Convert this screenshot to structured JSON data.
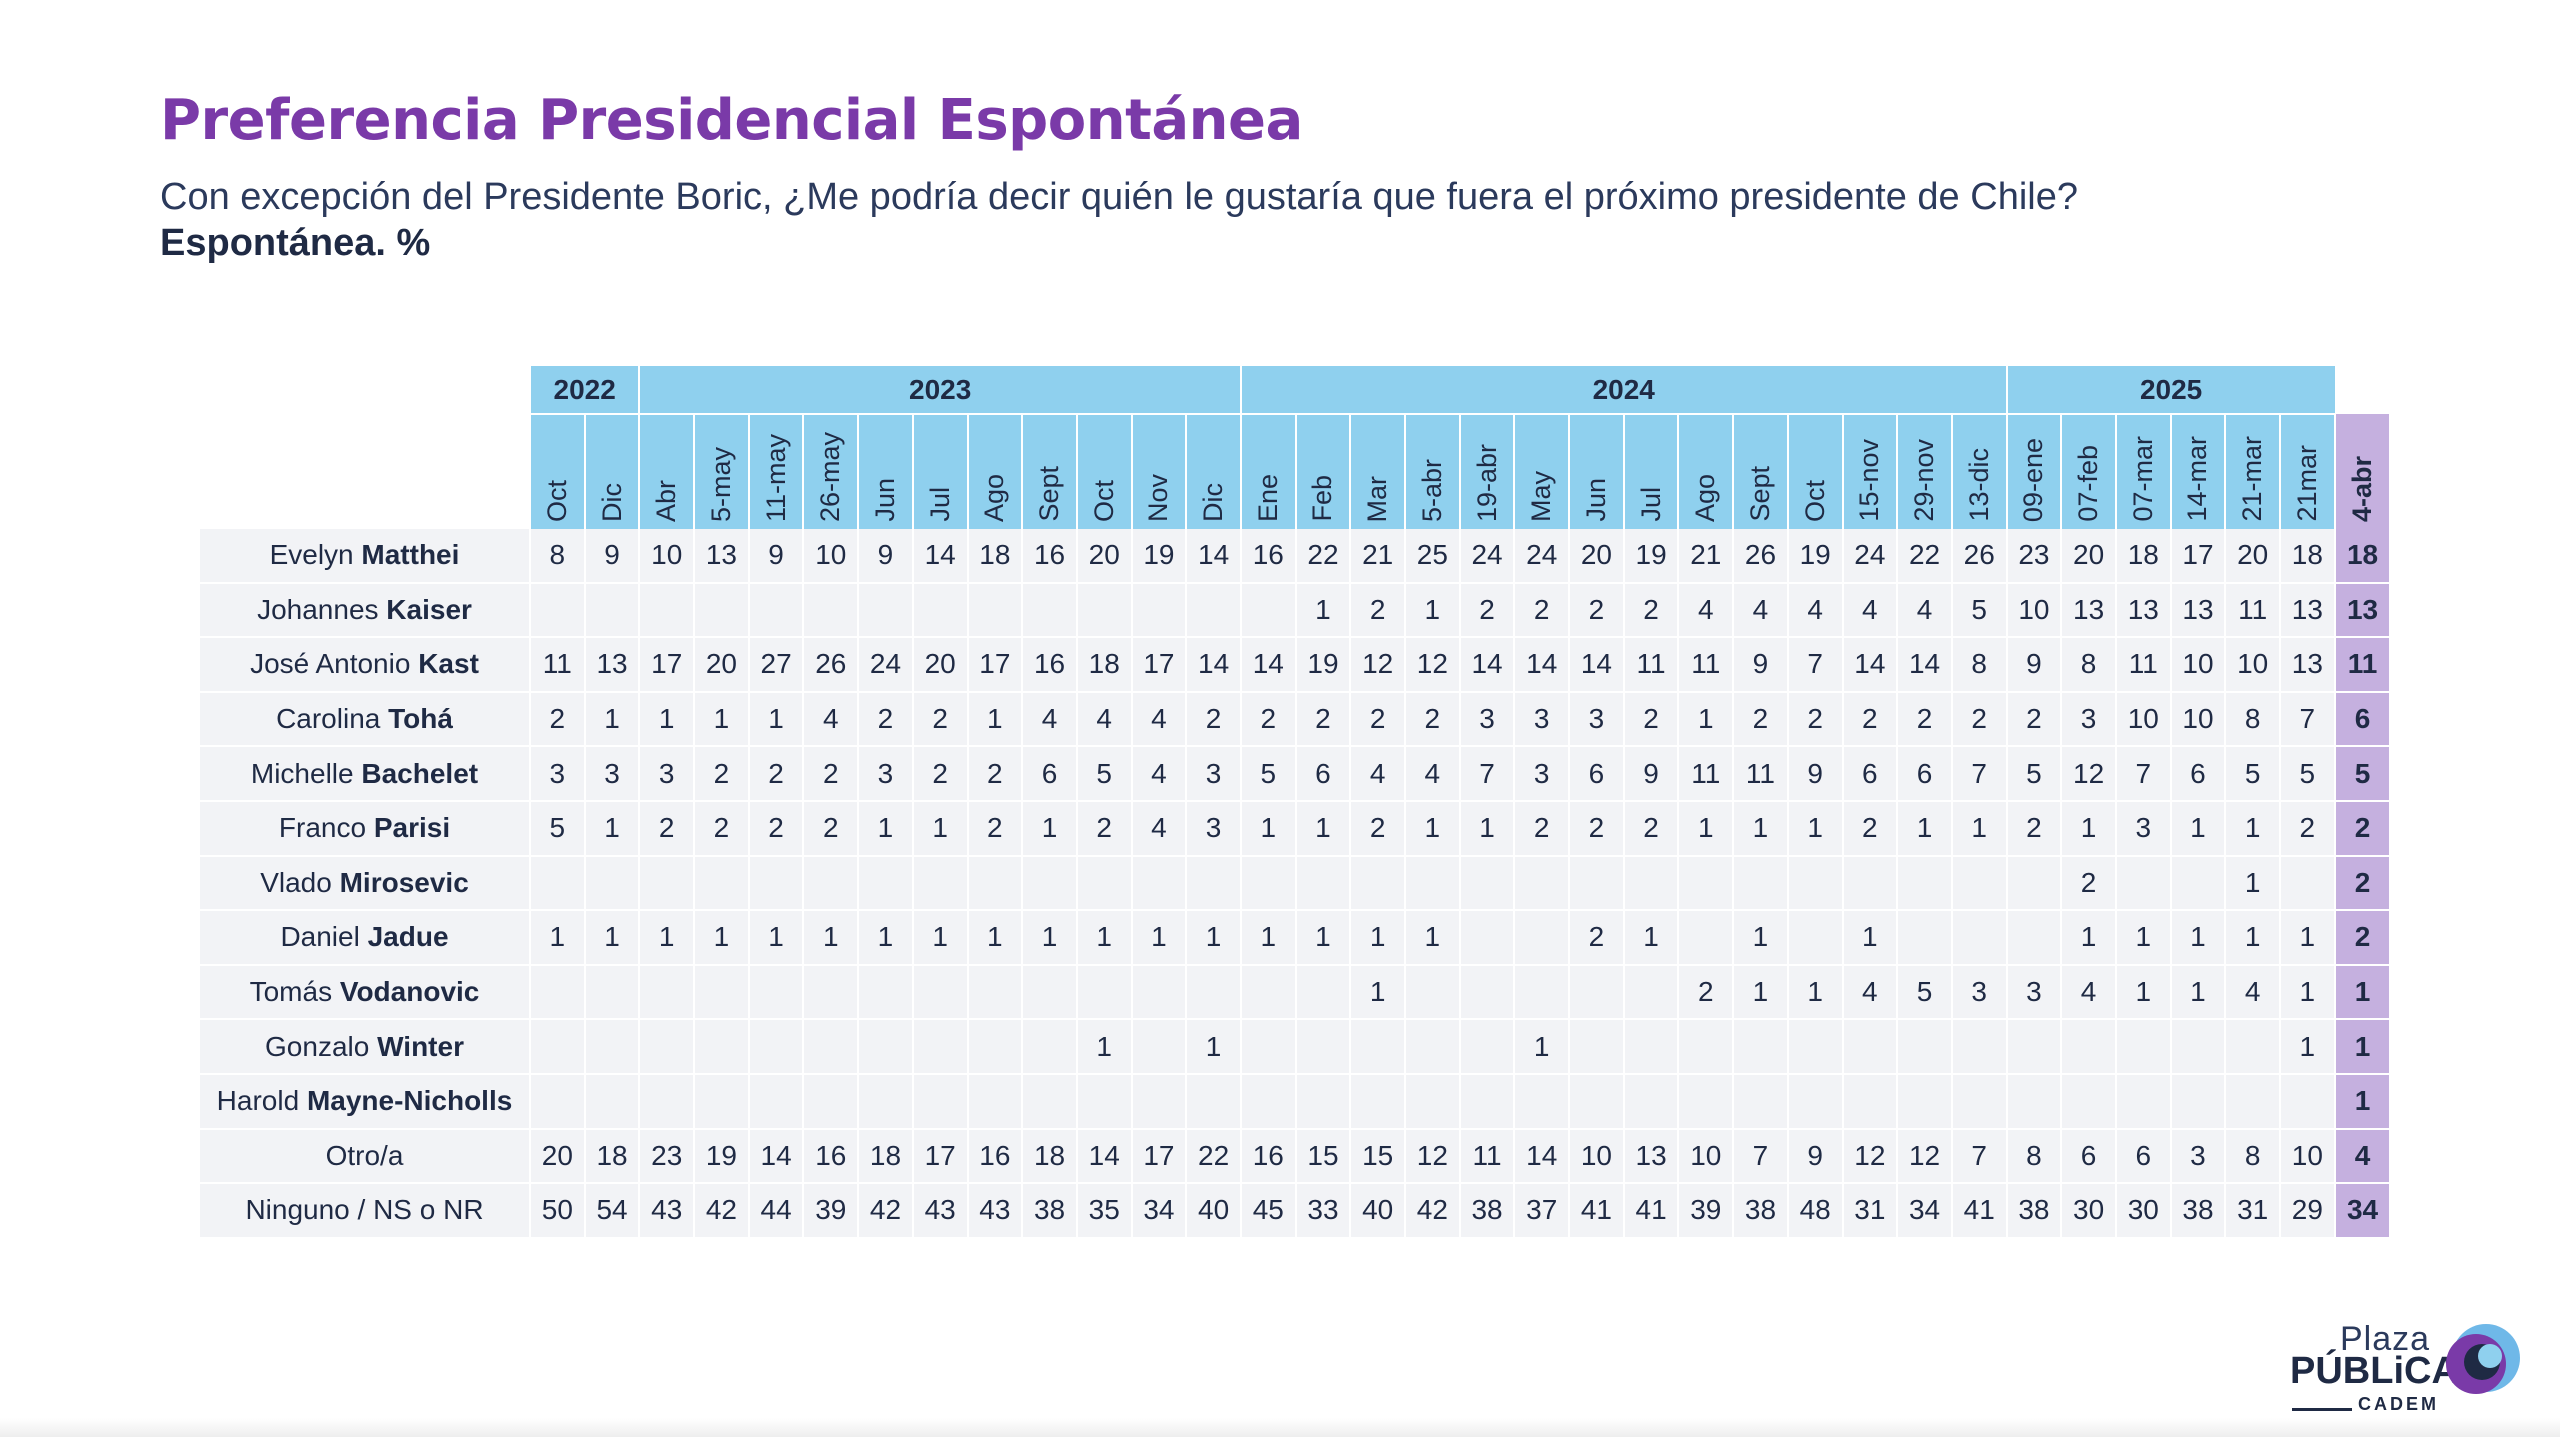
{
  "header": {
    "title": "Preferencia Presidencial Espontánea",
    "subtitle": "Con excepción del Presidente Boric, ¿Me podría decir quién le gustaría que fuera el próximo presidente de Chile?",
    "subtitle_bold": "Espontánea. %"
  },
  "colors": {
    "title": "#7a3aa8",
    "header_fill": "#8fd0ee",
    "latest_fill": "#c5b0df",
    "row_fill": "#f2f3f6",
    "text": "#1f2a44"
  },
  "logo": {
    "line1": "Plaza",
    "line2": "PÚBLiCA",
    "line3": "CADEM"
  },
  "chart_data": {
    "type": "table",
    "years": [
      {
        "label": "2022",
        "span": 2
      },
      {
        "label": "2023",
        "span": 11
      },
      {
        "label": "2024",
        "span": 14
      },
      {
        "label": "2025",
        "span": 6
      }
    ],
    "periods": [
      "Oct",
      "Dic",
      "Abr",
      "5-may",
      "11-may",
      "26-may",
      "Jun",
      "Jul",
      "Ago",
      "Sept",
      "Oct",
      "Nov",
      "Dic",
      "Ene",
      "Feb",
      "Mar",
      "5-abr",
      "19-abr",
      "May",
      "Jun",
      "Jul",
      "Ago",
      "Sept",
      "Oct",
      "15-nov",
      "29-nov",
      "13-dic",
      "09-ene",
      "07-feb",
      "07-mar",
      "14-mar",
      "21-mar",
      "21mar",
      "4-abr"
    ],
    "highlight_last_column": true,
    "rows": [
      {
        "first": "Evelyn",
        "last": "Matthei",
        "values": [
          "8",
          "9",
          "10",
          "13",
          "9",
          "10",
          "9",
          "14",
          "18",
          "16",
          "20",
          "19",
          "14",
          "16",
          "22",
          "21",
          "25",
          "24",
          "24",
          "20",
          "19",
          "21",
          "26",
          "19",
          "24",
          "22",
          "26",
          "23",
          "20",
          "18",
          "17",
          "20",
          "18",
          "18"
        ]
      },
      {
        "first": "Johannes",
        "last": "Kaiser",
        "values": [
          "",
          "",
          "",
          "",
          "",
          "",
          "",
          "",
          "",
          "",
          "",
          "",
          "",
          "",
          "1",
          "2",
          "1",
          "2",
          "2",
          "2",
          "2",
          "4",
          "4",
          "4",
          "4",
          "4",
          "5",
          "10",
          "13",
          "13",
          "13",
          "11",
          "13",
          "13"
        ]
      },
      {
        "first": "José Antonio",
        "last": "Kast",
        "values": [
          "11",
          "13",
          "17",
          "20",
          "27",
          "26",
          "24",
          "20",
          "17",
          "16",
          "18",
          "17",
          "14",
          "14",
          "19",
          "12",
          "12",
          "14",
          "14",
          "14",
          "11",
          "11",
          "9",
          "7",
          "14",
          "14",
          "8",
          "9",
          "8",
          "11",
          "10",
          "10",
          "13",
          "11"
        ]
      },
      {
        "first": "Carolina",
        "last": "Tohá",
        "values": [
          "2",
          "1",
          "1",
          "1",
          "1",
          "4",
          "2",
          "2",
          "1",
          "4",
          "4",
          "4",
          "2",
          "2",
          "2",
          "2",
          "2",
          "3",
          "3",
          "3",
          "2",
          "1",
          "2",
          "2",
          "2",
          "2",
          "2",
          "2",
          "3",
          "10",
          "10",
          "8",
          "7",
          "6"
        ]
      },
      {
        "first": "Michelle",
        "last": "Bachelet",
        "values": [
          "3",
          "3",
          "3",
          "2",
          "2",
          "2",
          "3",
          "2",
          "2",
          "6",
          "5",
          "4",
          "3",
          "5",
          "6",
          "4",
          "4",
          "7",
          "3",
          "6",
          "9",
          "11",
          "11",
          "9",
          "6",
          "6",
          "7",
          "5",
          "12",
          "7",
          "6",
          "5",
          "5",
          "5"
        ]
      },
      {
        "first": "Franco",
        "last": "Parisi",
        "values": [
          "5",
          "1",
          "2",
          "2",
          "2",
          "2",
          "1",
          "1",
          "2",
          "1",
          "2",
          "4",
          "3",
          "1",
          "1",
          "2",
          "1",
          "1",
          "2",
          "2",
          "2",
          "1",
          "1",
          "1",
          "2",
          "1",
          "1",
          "2",
          "1",
          "3",
          "1",
          "1",
          "2",
          "2"
        ]
      },
      {
        "first": "Vlado",
        "last": "Mirosevic",
        "values": [
          "",
          "",
          "",
          "",
          "",
          "",
          "",
          "",
          "",
          "",
          "",
          "",
          "",
          "",
          "",
          "",
          "",
          "",
          "",
          "",
          "",
          "",
          "",
          "",
          "",
          "",
          "",
          "",
          "2",
          "",
          "",
          "1",
          "",
          "2"
        ]
      },
      {
        "first": "Daniel",
        "last": "Jadue",
        "values": [
          "1",
          "1",
          "1",
          "1",
          "1",
          "1",
          "1",
          "1",
          "1",
          "1",
          "1",
          "1",
          "1",
          "1",
          "1",
          "1",
          "1",
          "",
          "",
          "2",
          "1",
          "",
          "1",
          "",
          "1",
          "",
          "",
          "",
          "1",
          "1",
          "1",
          "1",
          "1",
          "2"
        ]
      },
      {
        "first": "Tomás",
        "last": "Vodanovic",
        "values": [
          "",
          "",
          "",
          "",
          "",
          "",
          "",
          "",
          "",
          "",
          "",
          "",
          "",
          "",
          "",
          "1",
          "",
          "",
          "",
          "",
          "",
          "2",
          "1",
          "1",
          "4",
          "5",
          "3",
          "3",
          "4",
          "1",
          "1",
          "4",
          "1",
          "1"
        ]
      },
      {
        "first": "Gonzalo",
        "last": "Winter",
        "values": [
          "",
          "",
          "",
          "",
          "",
          "",
          "",
          "",
          "",
          "",
          "1",
          "",
          "1",
          "",
          "",
          "",
          "",
          "",
          "1",
          "",
          "",
          "",
          "",
          "",
          "",
          "",
          "",
          "",
          "",
          "",
          "",
          "",
          "1",
          "1"
        ]
      },
      {
        "first": "Harold",
        "last": "Mayne-Nicholls",
        "values": [
          "",
          "",
          "",
          "",
          "",
          "",
          "",
          "",
          "",
          "",
          "",
          "",
          "",
          "",
          "",
          "",
          "",
          "",
          "",
          "",
          "",
          "",
          "",
          "",
          "",
          "",
          "",
          "",
          "",
          "",
          "",
          "",
          "",
          "1"
        ]
      },
      {
        "first": "Otro/a",
        "last": "",
        "values": [
          "20",
          "18",
          "23",
          "19",
          "14",
          "16",
          "18",
          "17",
          "16",
          "18",
          "14",
          "17",
          "22",
          "16",
          "15",
          "15",
          "12",
          "11",
          "14",
          "10",
          "13",
          "10",
          "7",
          "9",
          "12",
          "12",
          "7",
          "8",
          "6",
          "6",
          "3",
          "8",
          "10",
          "4"
        ]
      },
      {
        "first": "Ninguno / NS o NR",
        "last": "",
        "values": [
          "50",
          "54",
          "43",
          "42",
          "44",
          "39",
          "42",
          "43",
          "43",
          "38",
          "35",
          "34",
          "40",
          "45",
          "33",
          "40",
          "42",
          "38",
          "37",
          "41",
          "41",
          "39",
          "38",
          "48",
          "31",
          "34",
          "41",
          "38",
          "30",
          "30",
          "38",
          "31",
          "29",
          "34"
        ]
      }
    ]
  }
}
